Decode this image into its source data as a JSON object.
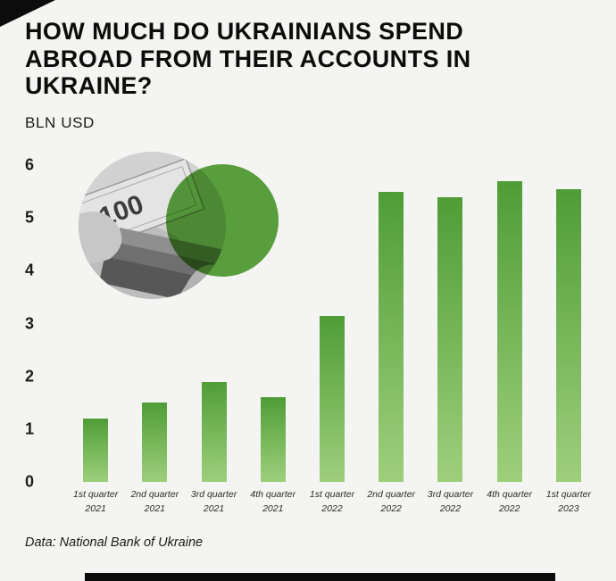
{
  "header": {
    "title": "HOW MUCH DO UKRAINIANS SPEND ABROAD FROM THEIR ACCOUNTS IN UKRAINE?",
    "unit_label": "BLN USD"
  },
  "footer": {
    "source": "Data: National Bank of Ukraine"
  },
  "decor": {
    "banknote_text": "100"
  },
  "colors": {
    "background": "#f4f4f2",
    "bar_top": "#4f9d37",
    "bar_bottom": "#9ecf7b",
    "circle_green": "#4f9d2e",
    "accent_black": "#0c0c0c"
  },
  "chart_data": {
    "type": "bar",
    "title": "How much do Ukrainians spend abroad from their accounts in Ukraine?",
    "xlabel": "",
    "ylabel": "BLN USD",
    "ylim": [
      0,
      6
    ],
    "yticks": [
      6,
      5,
      4,
      3,
      2,
      1,
      0
    ],
    "grid": false,
    "legend": false,
    "categories": [
      {
        "quarter": "1st quarter",
        "year": "2021"
      },
      {
        "quarter": "2nd quarter",
        "year": "2021"
      },
      {
        "quarter": "3rd quarter",
        "year": "2021"
      },
      {
        "quarter": "4th quarter",
        "year": "2021"
      },
      {
        "quarter": "1st quarter",
        "year": "2022"
      },
      {
        "quarter": "2nd quarter",
        "year": "2022"
      },
      {
        "quarter": "3rd quarter",
        "year": "2022"
      },
      {
        "quarter": "4th quarter",
        "year": "2022"
      },
      {
        "quarter": "1st quarter",
        "year": "2023"
      }
    ],
    "values": [
      1.2,
      1.5,
      1.9,
      1.6,
      3.15,
      5.5,
      5.4,
      5.7,
      5.55
    ],
    "source": "Data: National Bank of Ukraine"
  }
}
